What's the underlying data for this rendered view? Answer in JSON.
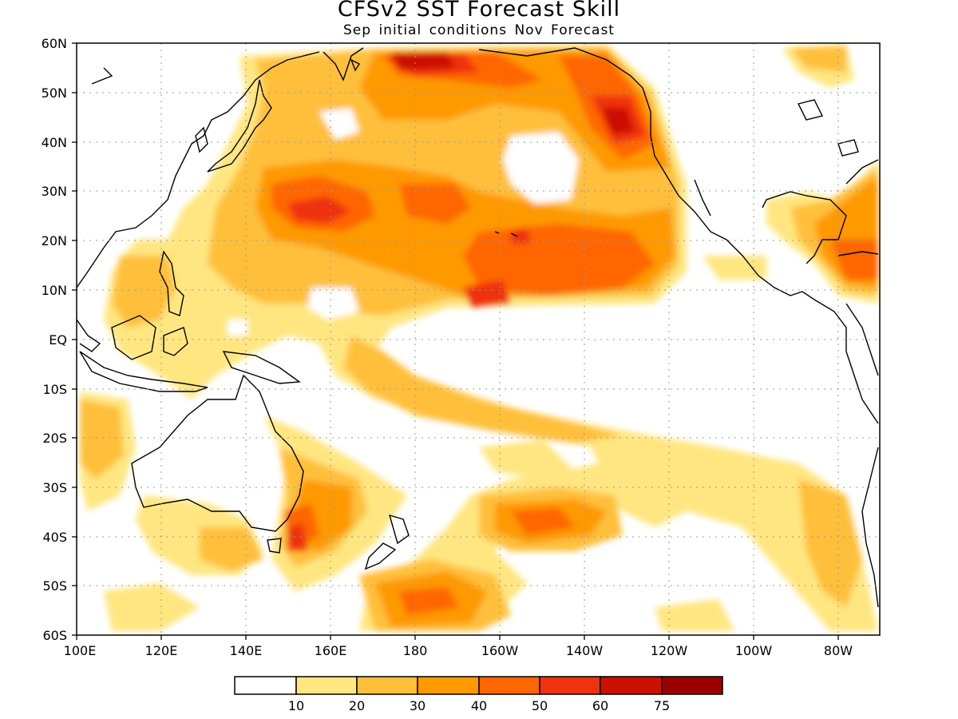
{
  "map": {
    "title": "CFSv2 SST Forecast Skill",
    "subtitle": "Sep initial conditions   Nov Forecast",
    "lat_labels": [
      "60N",
      "50N",
      "40N",
      "30N",
      "20N",
      "10N",
      "EQ",
      "10S",
      "20S",
      "30S",
      "40S",
      "50S",
      "60S"
    ],
    "lon_labels": [
      "100E",
      "120E",
      "140E",
      "160E",
      "180",
      "160W",
      "140W",
      "120W",
      "100W",
      "80W"
    ],
    "lat_range": [
      -60,
      60
    ],
    "lon_range_deg_east": [
      100,
      290
    ],
    "grid": "dotted"
  },
  "colorbar": {
    "colors": [
      "#ffffff",
      "#ffe680",
      "#ffbf3a",
      "#ff9900",
      "#ff6600",
      "#ee3311",
      "#cc1100",
      "#990000"
    ],
    "labels": [
      "10",
      "20",
      "30",
      "40",
      "50",
      "60",
      "75"
    ]
  }
}
